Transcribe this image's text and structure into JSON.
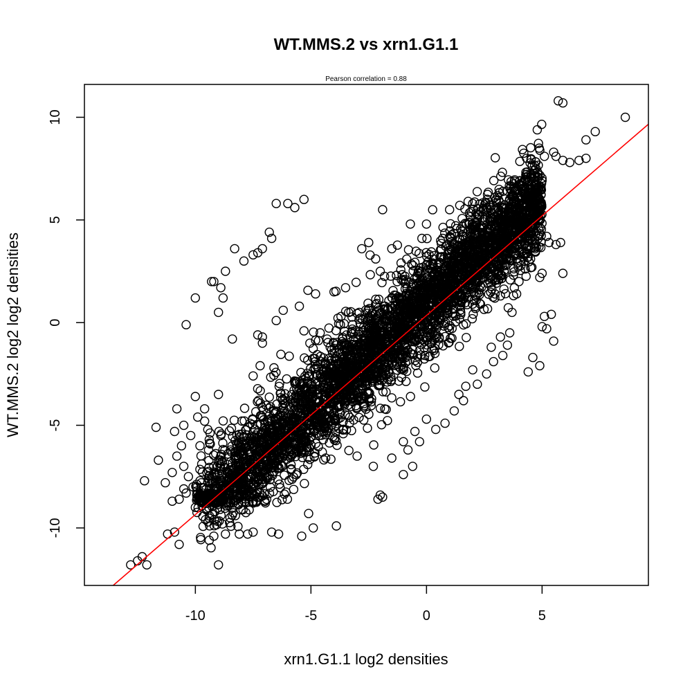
{
  "chart_data": {
    "type": "scatter",
    "title": "WT.MMS.2 vs xrn1.G1.1",
    "subtitle": "Pearson correlation =  0.88",
    "xlabel": "xrn1.G1.1 log2 densities",
    "ylabel": "WT.MMS.2 log2 log2 densities",
    "xlim": [
      -14.8,
      9.6
    ],
    "ylim": [
      -12.8,
      11.6
    ],
    "xticks": [
      -10,
      -5,
      0,
      5
    ],
    "yticks": [
      -10,
      -5,
      0,
      5,
      10
    ],
    "grid": false,
    "marker": "open-circle",
    "point_color": "#000000",
    "fit_line": {
      "color": "#ff0000",
      "intercept": 0.35,
      "slope": 0.97
    },
    "cloud": {
      "description_type": "dense band",
      "count": 4200,
      "x_range": [
        -10,
        5
      ]
    },
    "points": [
      [
        -12.8,
        -11.8
      ],
      [
        -12.5,
        -11.6
      ],
      [
        -12.3,
        -11.4
      ],
      [
        -12.1,
        -11.8
      ],
      [
        -12.2,
        -7.7
      ],
      [
        -11.2,
        -10.3
      ],
      [
        -11.6,
        -6.7
      ],
      [
        -11.7,
        -5.1
      ],
      [
        -10.9,
        -10.2
      ],
      [
        -10.7,
        -10.8
      ],
      [
        -10.5,
        -8.1
      ],
      [
        -10.6,
        -6.0
      ],
      [
        -10.4,
        -0.1
      ],
      [
        -10.0,
        1.2
      ],
      [
        -9.0,
        -11.8
      ],
      [
        -9.0,
        0.5
      ],
      [
        -9.2,
        2.0
      ],
      [
        -9.3,
        2.0
      ],
      [
        -8.9,
        1.7
      ],
      [
        -8.8,
        1.2
      ],
      [
        -8.7,
        2.5
      ],
      [
        -8.3,
        3.6
      ],
      [
        -7.9,
        3.0
      ],
      [
        -7.5,
        3.3
      ],
      [
        -7.3,
        3.4
      ],
      [
        -7.1,
        3.6
      ],
      [
        -6.8,
        4.4
      ],
      [
        -6.7,
        4.1
      ],
      [
        -6.5,
        5.8
      ],
      [
        -6.0,
        5.8
      ],
      [
        -5.7,
        5.6
      ],
      [
        -5.3,
        6.0
      ],
      [
        -6.2,
        0.6
      ],
      [
        -6.5,
        0.1
      ],
      [
        -7.3,
        -0.6
      ],
      [
        -7.1,
        -0.7
      ],
      [
        -8.4,
        -0.8
      ],
      [
        -9.0,
        -3.5
      ],
      [
        -9.4,
        -5.7
      ],
      [
        -9.6,
        -4.8
      ],
      [
        -9.9,
        -4.6
      ],
      [
        -10.0,
        -3.6
      ],
      [
        -10.8,
        -4.2
      ],
      [
        -10.9,
        -5.3
      ],
      [
        -8.1,
        -10.3
      ],
      [
        -8.5,
        -9.5
      ],
      [
        -8.7,
        -10.3
      ],
      [
        -9.2,
        -10.4
      ],
      [
        -9.4,
        -10.6
      ],
      [
        -7.5,
        -10.2
      ],
      [
        -6.7,
        -10.2
      ],
      [
        -6.4,
        -10.3
      ],
      [
        -5.4,
        -10.4
      ],
      [
        -4.9,
        -10.0
      ],
      [
        -5.1,
        -9.3
      ],
      [
        -3.9,
        -9.9
      ],
      [
        -2.1,
        -8.6
      ],
      [
        -2.0,
        -8.4
      ],
      [
        -1.9,
        -8.5
      ],
      [
        -0.6,
        -7.0
      ],
      [
        -1.0,
        -7.4
      ],
      [
        -0.8,
        -6.2
      ],
      [
        -0.5,
        -5.3
      ],
      [
        0.0,
        -4.7
      ],
      [
        1.4,
        -3.5
      ],
      [
        1.7,
        -3.1
      ],
      [
        2.0,
        -2.3
      ],
      [
        2.8,
        -1.2
      ],
      [
        3.2,
        -0.7
      ],
      [
        3.6,
        -0.5
      ],
      [
        3.7,
        0.5
      ],
      [
        3.2,
        1.3
      ],
      [
        3.8,
        1.7
      ],
      [
        4.0,
        2.0
      ],
      [
        4.6,
        -1.7
      ],
      [
        4.9,
        -2.1
      ],
      [
        5.1,
        0.3
      ],
      [
        5.4,
        0.4
      ],
      [
        5.0,
        -0.2
      ],
      [
        5.2,
        -0.3
      ],
      [
        5.5,
        -0.9
      ],
      [
        4.9,
        2.2
      ],
      [
        5.0,
        2.4
      ],
      [
        5.9,
        2.4
      ],
      [
        4.4,
        -2.4
      ],
      [
        3.9,
        1.4
      ],
      [
        4.5,
        3.1
      ],
      [
        4.7,
        3.6
      ],
      [
        5.3,
        3.9
      ],
      [
        5.2,
        4.2
      ],
      [
        5.6,
        3.8
      ],
      [
        5.8,
        3.9
      ],
      [
        -1.9,
        5.5
      ],
      [
        -0.7,
        4.8
      ],
      [
        0.0,
        4.8
      ],
      [
        1.0,
        5.5
      ],
      [
        2.0,
        5.8
      ],
      [
        -2.5,
        3.9
      ],
      [
        -2.8,
        3.6
      ],
      [
        -1.5,
        3.6
      ],
      [
        -1.3,
        2.3
      ],
      [
        -2.0,
        2.5
      ],
      [
        -3.5,
        1.7
      ],
      [
        -4.0,
        1.5
      ],
      [
        -4.8,
        1.4
      ],
      [
        -3.2,
        -0.1
      ],
      [
        -4.3,
        -0.8
      ],
      [
        -3.7,
        0.3
      ],
      [
        4.5,
        4.6
      ],
      [
        4.6,
        4.8
      ],
      [
        4.2,
        5.0
      ],
      [
        5.7,
        10.8
      ],
      [
        5.9,
        10.7
      ],
      [
        8.6,
        10.0
      ],
      [
        7.3,
        9.3
      ],
      [
        6.9,
        8.9
      ],
      [
        6.6,
        7.9
      ],
      [
        6.9,
        8.0
      ],
      [
        6.2,
        7.8
      ],
      [
        5.5,
        8.3
      ],
      [
        5.1,
        8.1
      ],
      [
        5.6,
        8.1
      ],
      [
        5.9,
        7.9
      ],
      [
        4.8,
        6.6
      ],
      [
        -10.3,
        -7.5
      ],
      [
        -10.5,
        -7.0
      ],
      [
        -10.8,
        -6.5
      ],
      [
        -11.0,
        -7.3
      ],
      [
        -11.3,
        -7.8
      ],
      [
        -11.0,
        -8.7
      ],
      [
        -10.7,
        -8.6
      ],
      [
        -10.4,
        -8.3
      ],
      [
        -10.1,
        -8.0
      ],
      [
        -9.8,
        -7.7
      ],
      [
        -9.5,
        -7.3
      ],
      [
        -9.2,
        -7.0
      ],
      [
        -8.9,
        -6.7
      ],
      [
        -8.6,
        -6.4
      ],
      [
        -10.0,
        -9.0
      ],
      [
        -9.7,
        -8.7
      ],
      [
        -9.4,
        -8.4
      ],
      [
        -9.1,
        -8.1
      ],
      [
        -8.8,
        -7.8
      ],
      [
        -8.4,
        -7.5
      ],
      [
        -10.2,
        -5.5
      ],
      [
        -10.5,
        -5.0
      ],
      [
        -9.6,
        -4.2
      ],
      [
        -9.8,
        -6.0
      ],
      [
        -8.9,
        -5.5
      ],
      [
        -7.2,
        -2.1
      ],
      [
        -6.6,
        -2.2
      ],
      [
        -7.5,
        -2.6
      ],
      [
        -7.1,
        -1.0
      ],
      [
        -5.3,
        -0.4
      ],
      [
        -4.6,
        -0.5
      ],
      [
        -5.5,
        0.8
      ],
      [
        -2.2,
        3.1
      ],
      [
        -1.1,
        2.9
      ],
      [
        -0.2,
        4.1
      ],
      [
        0.7,
        4.1
      ],
      [
        1.6,
        4.2
      ],
      [
        2.4,
        3.4
      ],
      [
        2.5,
        4.9
      ],
      [
        2.9,
        5.5
      ],
      [
        3.5,
        6.4
      ],
      [
        1.8,
        5.9
      ],
      [
        -3.0,
        -6.5
      ],
      [
        -2.3,
        -7.0
      ],
      [
        -1.5,
        -6.6
      ],
      [
        -1.0,
        -5.8
      ],
      [
        -0.3,
        -5.8
      ],
      [
        0.4,
        -5.2
      ],
      [
        0.8,
        -4.9
      ],
      [
        1.2,
        -4.3
      ],
      [
        1.6,
        -3.8
      ],
      [
        2.2,
        -3.0
      ],
      [
        2.6,
        -2.5
      ],
      [
        2.9,
        -1.9
      ],
      [
        3.3,
        -1.6
      ],
      [
        3.5,
        -1.1
      ]
    ]
  }
}
